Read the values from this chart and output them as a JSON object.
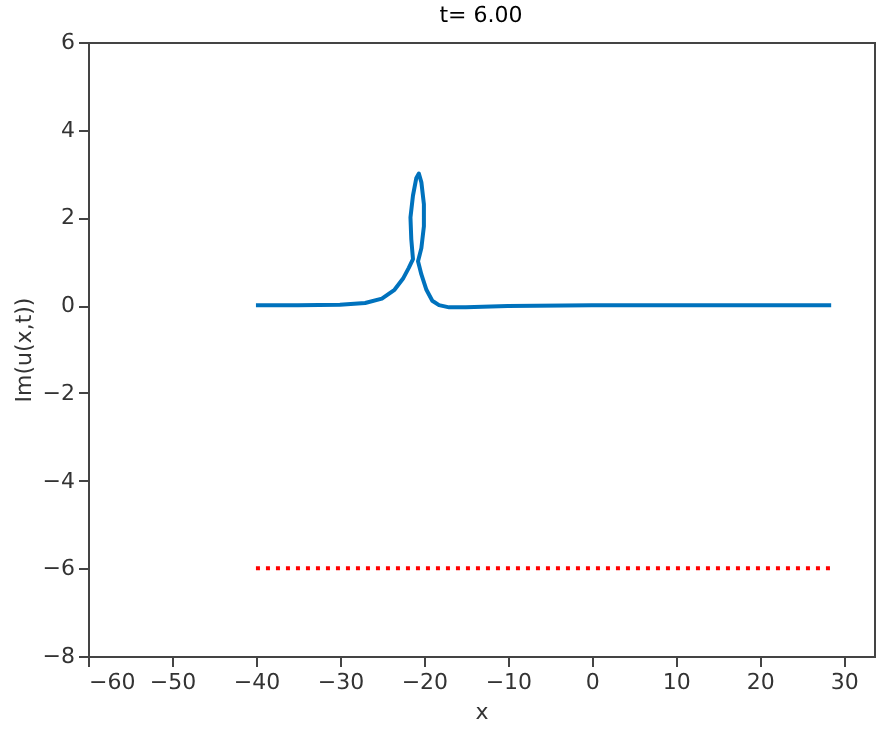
{
  "chart_data": {
    "type": "line",
    "title": "t= 6.00",
    "xlabel": "x",
    "ylabel": "Im(u(x,t))",
    "xlim": [
      -60,
      33.6
    ],
    "xticks": [
      -60,
      -50,
      -40,
      -30,
      -20,
      -10,
      0,
      10,
      20,
      30
    ],
    "ylim": [
      -8,
      6
    ],
    "yticks": [
      -8,
      -6,
      -4,
      -2,
      0,
      2,
      4,
      6
    ],
    "grid": false,
    "series": [
      {
        "color": "#0072bd",
        "line_style": "solid",
        "x": [
          -40,
          -35,
          -30,
          -27,
          -25,
          -23.5,
          -22.5,
          -21.8,
          -21.3,
          -21.5,
          -21.6,
          -21.3,
          -20.9,
          -20.6,
          -20.3,
          -20.0,
          -20.0,
          -20.3,
          -20.7,
          -20.3,
          -19.7,
          -19,
          -18.2,
          -17,
          -15,
          -10,
          0,
          10,
          20,
          28.5
        ],
        "values": [
          0,
          0,
          0.01,
          0.05,
          0.15,
          0.35,
          0.6,
          0.85,
          1.05,
          1.5,
          2.0,
          2.5,
          2.9,
          3.0,
          2.8,
          2.3,
          1.8,
          1.3,
          1.0,
          0.7,
          0.35,
          0.1,
          0,
          -0.05,
          -0.05,
          -0.02,
          0,
          0,
          0,
          0
        ]
      },
      {
        "color": "#ff0000",
        "line_style": "dotted",
        "x": [
          -40,
          28.5
        ],
        "values": [
          -6,
          -6
        ]
      }
    ]
  }
}
